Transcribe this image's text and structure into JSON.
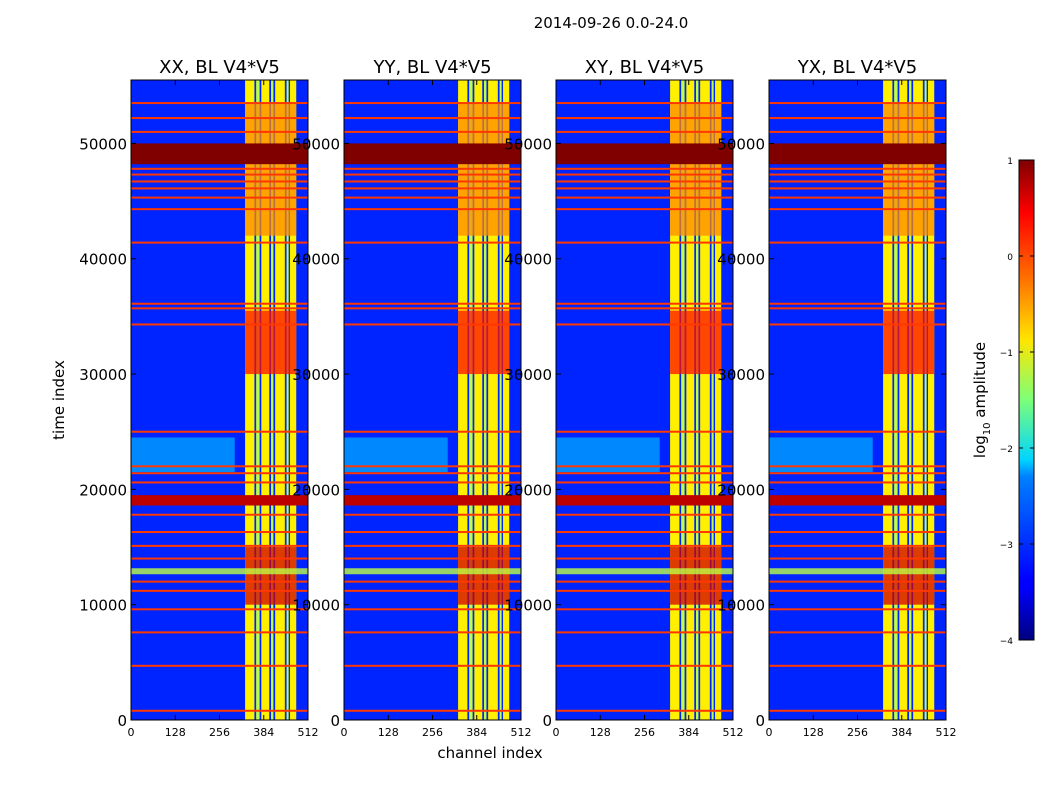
{
  "figure_title": "2014-09-26 0.0-24.0",
  "shared": {
    "ylabel": "time index",
    "xlabel": "channel index",
    "y_ticks": [
      0,
      10000,
      20000,
      30000,
      40000,
      50000
    ],
    "x_ticks": [
      0,
      128,
      256,
      384,
      512
    ]
  },
  "colorbar": {
    "label": "log10 amplitude",
    "label_base": "log",
    "label_sub": "10",
    "label_rest": " amplitude",
    "ticks": [
      1,
      0,
      -1,
      -2,
      -3,
      -4
    ],
    "tick_labels": [
      "1",
      "0",
      "−1",
      "−2",
      "−3",
      "−4"
    ],
    "range": [
      -4,
      1
    ],
    "colormap": "jet"
  },
  "chart_data": [
    {
      "type": "heatmap",
      "title": "XX, BL V4*V5",
      "xlabel": "channel index",
      "ylabel": "time index",
      "xlim": [
        0,
        512
      ],
      "ylim": [
        0,
        55500
      ],
      "background_level": -3.2
    },
    {
      "type": "heatmap",
      "title": "YY, BL V4*V5",
      "xlabel": "channel index",
      "ylabel": "time index",
      "xlim": [
        0,
        512
      ],
      "ylim": [
        0,
        55500
      ],
      "background_level": -3.2
    },
    {
      "type": "heatmap",
      "title": "XY, BL V4*V5",
      "xlabel": "channel index",
      "ylabel": "time index",
      "xlim": [
        0,
        512
      ],
      "ylim": [
        0,
        55500
      ],
      "background_level": -3.2
    },
    {
      "type": "heatmap",
      "title": "YX, BL V4*V5",
      "xlabel": "channel index",
      "ylabel": "time index",
      "xlim": [
        0,
        512
      ],
      "ylim": [
        0,
        55500
      ],
      "background_level": -3.2
    }
  ],
  "features": {
    "saturated_bands": [
      {
        "t0": 48200,
        "t1": 50000,
        "level": 1.0
      },
      {
        "t0": 18600,
        "t1": 19500,
        "level": 0.7
      }
    ],
    "flag_lines": [
      53500,
      52200,
      51000,
      47800,
      47300,
      46700,
      46100,
      45300,
      44300,
      41400,
      36100,
      35700,
      34300,
      25000,
      22000,
      21400,
      20600,
      17800,
      16300,
      15100,
      14000,
      12000,
      11200,
      9600,
      7600,
      4700,
      800
    ],
    "flag_line_level": 0.1,
    "rfi_columns": [
      {
        "c0": 330,
        "c1": 357,
        "level": -0.8
      },
      {
        "c0": 362,
        "c1": 372,
        "level": -1.2
      },
      {
        "c0": 377,
        "c1": 400,
        "level": -0.8
      },
      {
        "c0": 405,
        "c1": 412,
        "level": -1.2
      },
      {
        "c0": 417,
        "c1": 445,
        "level": -0.8
      },
      {
        "c0": 450,
        "c1": 456,
        "level": -1.2
      },
      {
        "c0": 460,
        "c1": 478,
        "level": -0.8
      }
    ],
    "rfi_bursts": [
      {
        "t0": 10000,
        "t1": 15000,
        "level": 0.6
      },
      {
        "t0": 30000,
        "t1": 35500,
        "level": 0.3
      },
      {
        "t0": 42000,
        "t1": 53500,
        "level": -0.3
      }
    ],
    "horizontal_streak": {
      "t": 12900,
      "level": -1.2
    },
    "cyan_block": {
      "t0": 21500,
      "t1": 24500,
      "level": -2.3
    }
  }
}
